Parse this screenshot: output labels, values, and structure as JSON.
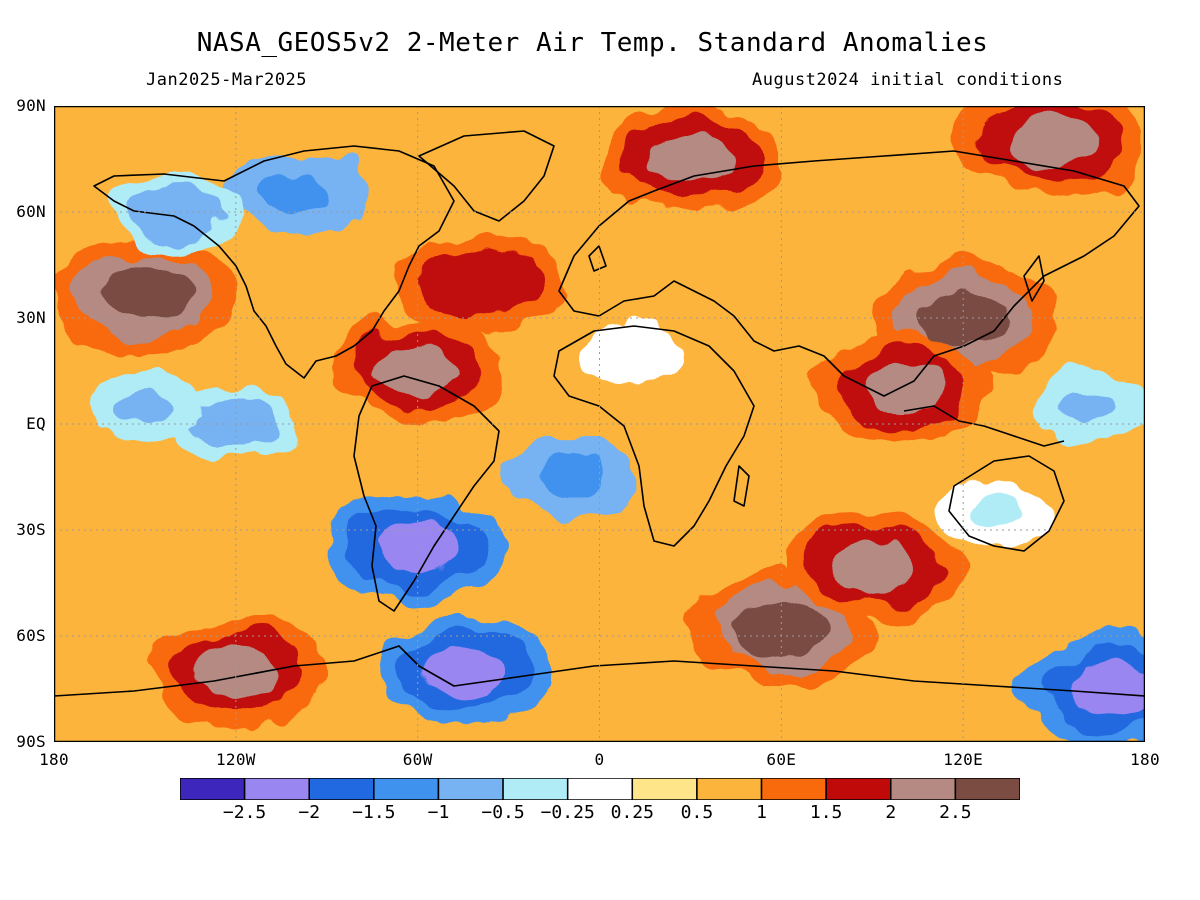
{
  "title": "NASA_GEOS5v2 2-Meter Air Temp. Standard Anomalies",
  "subtitle_left": "Jan2025-Mar2025",
  "subtitle_right": "August2024 initial conditions",
  "map": {
    "projection": "equirectangular",
    "lon_range": [
      -180,
      180
    ],
    "lat_range": [
      -90,
      90
    ],
    "grid": "dotted gray",
    "coastlines": true
  },
  "axes": {
    "y_ticks": [
      {
        "lat": 90,
        "label": "90N"
      },
      {
        "lat": 60,
        "label": "60N"
      },
      {
        "lat": 30,
        "label": "30N"
      },
      {
        "lat": 0,
        "label": "EQ"
      },
      {
        "lat": -30,
        "label": "30S"
      },
      {
        "lat": -60,
        "label": "60S"
      },
      {
        "lat": -90,
        "label": "90S"
      }
    ],
    "x_ticks": [
      {
        "lon": -180,
        "label": "180"
      },
      {
        "lon": -120,
        "label": "120W"
      },
      {
        "lon": -60,
        "label": "60W"
      },
      {
        "lon": 0,
        "label": "0"
      },
      {
        "lon": 60,
        "label": "60E"
      },
      {
        "lon": 120,
        "label": "120E"
      },
      {
        "lon": 180,
        "label": "180"
      }
    ]
  },
  "colorbar": {
    "colors": [
      "#3c26bb",
      "#9a86f0",
      "#2069e0",
      "#3f92ee",
      "#77b2f2",
      "#b0ecf6",
      "#ffffff",
      "#ffe58a",
      "#fcb43c",
      "#f86a0c",
      "#c00a0a",
      "#b48a82",
      "#7a4c42"
    ],
    "labels": [
      "-2.5",
      "-2",
      "-1.5",
      "-1",
      "-0.5",
      "-0.25",
      "0.25",
      "0.5",
      "1",
      "1.5",
      "2",
      "2.5"
    ]
  },
  "chart_data": {
    "type": "heatmap",
    "variable": "2-Meter Air Temp. Standard Anomalies",
    "levels": [
      -2.5,
      -2,
      -1.5,
      -1,
      -0.5,
      -0.25,
      0.25,
      0.5,
      1,
      1.5,
      2,
      2.5
    ],
    "xlim": [
      -180,
      180
    ],
    "ylim": [
      -90,
      90
    ],
    "regions": [
      {
        "lon": -150,
        "lat": 37,
        "value": 2.6
      },
      {
        "lon": -100,
        "lat": 65,
        "value": -1.2
      },
      {
        "lon": -140,
        "lat": 60,
        "value": -0.8
      },
      {
        "lon": -60,
        "lat": 15,
        "value": 2.2
      },
      {
        "lon": -40,
        "lat": 40,
        "value": 2.0
      },
      {
        "lon": -120,
        "lat": 0,
        "value": -0.9
      },
      {
        "lon": -150,
        "lat": 5,
        "value": -0.6
      },
      {
        "lon": -60,
        "lat": -35,
        "value": -2.3
      },
      {
        "lon": -45,
        "lat": -70,
        "value": -2.2
      },
      {
        "lon": -120,
        "lat": -70,
        "value": 2.4
      },
      {
        "lon": 60,
        "lat": -58,
        "value": 2.6
      },
      {
        "lon": 120,
        "lat": 30,
        "value": 2.6
      },
      {
        "lon": 100,
        "lat": 10,
        "value": 2.3
      },
      {
        "lon": 160,
        "lat": 5,
        "value": -0.5
      },
      {
        "lon": 30,
        "lat": 75,
        "value": 2.3
      },
      {
        "lon": 150,
        "lat": 80,
        "value": 2.5
      },
      {
        "lon": 10,
        "lat": 20,
        "value": 0.1
      },
      {
        "lon": 130,
        "lat": -25,
        "value": -0.3
      },
      {
        "lon": -10,
        "lat": -15,
        "value": -1.1
      },
      {
        "lon": 90,
        "lat": -40,
        "value": 2.2
      },
      {
        "lon": 170,
        "lat": -75,
        "value": -2.3
      }
    ]
  }
}
